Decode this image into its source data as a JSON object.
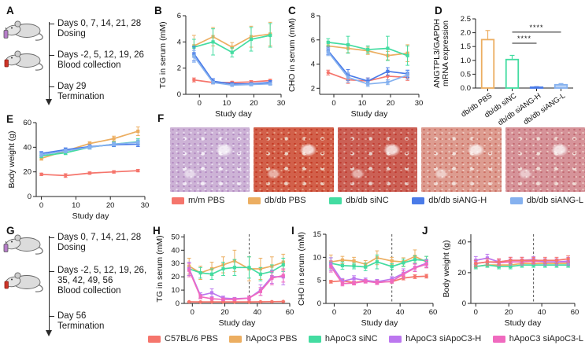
{
  "panels": {
    "a": "A",
    "b": "B",
    "c": "C",
    "d": "D",
    "e": "E",
    "f": "F",
    "g": "G",
    "h": "H",
    "i": "I",
    "j": "J"
  },
  "timelines": {
    "a": {
      "items": [
        {
          "line1": "Days 0, 7, 14, 21, 28",
          "line2": "Dosing"
        },
        {
          "line1": "Days -2, 5, 12, 19, 26",
          "line2": "Blood collection"
        },
        {
          "line1": "Day 29",
          "line2": "Termination"
        }
      ]
    },
    "g": {
      "items": [
        {
          "line1": "Days 0, 7, 14, 21, 28",
          "line2": "Dosing"
        },
        {
          "line1": "Days -2, 5, 12, 19, 26,",
          "line2": "35, 42, 49, 56",
          "line3": "Blood collection"
        },
        {
          "line1": "Day 56",
          "line2": "Termination"
        }
      ]
    }
  },
  "legend1": [
    {
      "label": "m/m PBS",
      "color": "#F5756C"
    },
    {
      "label": "db/db PBS",
      "color": "#ECAE61"
    },
    {
      "label": "db/db siNC",
      "color": "#43DCA1"
    },
    {
      "label": "db/db siANG-H",
      "color": "#4A7BE8"
    },
    {
      "label": "db/db siANG-L",
      "color": "#85B1EF"
    }
  ],
  "legend2": [
    {
      "label": "C57BL/6 PBS",
      "color": "#F5756C"
    },
    {
      "label": "hApoC3 PBS",
      "color": "#ECAE61"
    },
    {
      "label": "hApoC3 siNC",
      "color": "#43DCA1"
    },
    {
      "label": "hApoC3 siApoC3-H",
      "color": "#BC77EF"
    },
    {
      "label": "hApoC3 siApoC3-L",
      "color": "#F06ABF"
    }
  ],
  "histology": [
    {
      "name": "m/m PBS",
      "base": "#cdb3d6",
      "spot1": "#b48cc2",
      "spot2": "#e9ddf0",
      "light": "#f4eef7"
    },
    {
      "name": "db/db PBS",
      "base": "#d2604a",
      "spot1": "#c33a24",
      "spot2": "#e59c82",
      "light": "#ecd3c4"
    },
    {
      "name": "db/db siNC",
      "base": "#cb6055",
      "spot1": "#c03c31",
      "spot2": "#e09a90",
      "light": "#e8cfc9"
    },
    {
      "name": "db/db siANG-H",
      "base": "#dd9c90",
      "spot1": "#cd6f62",
      "spot2": "#efc9c0",
      "light": "#f3e0da"
    },
    {
      "name": "db/db siANG-L",
      "base": "#d69399",
      "spot1": "#c26b72",
      "spot2": "#ecc8c3",
      "light": "#f1ded8"
    }
  ],
  "chart_data": [
    {
      "panel": "B",
      "type": "line",
      "xlabel": "Study day",
      "ylabel": "TG in serum (mM)",
      "xlim": [
        -5,
        30
      ],
      "xticks": [
        0,
        10,
        20,
        30
      ],
      "ylim": [
        0,
        6
      ],
      "yticks": [
        0,
        2,
        4,
        6
      ],
      "x": [
        -2,
        5,
        12,
        19,
        26
      ],
      "margins": {
        "l": 36,
        "t": 10,
        "r": 8,
        "b": 32
      },
      "series": [
        {
          "name": "m/m PBS",
          "color": "#F5756C",
          "marker": "ci",
          "values": [
            1.1,
            0.9,
            0.9,
            0.95,
            1.05
          ],
          "err": [
            0.15,
            0.1,
            0.1,
            0.1,
            0.1
          ]
        },
        {
          "name": "db/db PBS",
          "color": "#ECAE61",
          "marker": "sq",
          "values": [
            3.7,
            4.4,
            3.6,
            4.4,
            4.6
          ],
          "err": [
            0.8,
            0.7,
            0.35,
            0.8,
            0.9
          ]
        },
        {
          "name": "db/db siNC",
          "color": "#43DCA1",
          "marker": "sq",
          "values": [
            3.6,
            4.0,
            3.2,
            4.2,
            4.5
          ],
          "err": [
            0.6,
            1.0,
            0.35,
            0.9,
            0.9
          ]
        },
        {
          "name": "db/db siANG-H",
          "color": "#4A7BE8",
          "marker": "sq",
          "values": [
            3.1,
            1.0,
            0.8,
            0.8,
            0.9
          ],
          "err": [
            0.55,
            0.2,
            0.1,
            0.1,
            0.15
          ]
        },
        {
          "name": "db/db siANG-L",
          "color": "#85B1EF",
          "marker": "sq",
          "values": [
            2.9,
            0.9,
            0.7,
            0.75,
            0.8
          ],
          "err": [
            0.45,
            0.1,
            0.1,
            0.1,
            0.1
          ]
        }
      ]
    },
    {
      "panel": "C",
      "type": "line",
      "xlabel": "Study day",
      "ylabel": "CHO in serum (mM)",
      "xlim": [
        -5,
        30
      ],
      "xticks": [
        0,
        10,
        20,
        30
      ],
      "ylim": [
        1.5,
        8
      ],
      "yticks": [
        2,
        4,
        6,
        8
      ],
      "x": [
        -2,
        5,
        12,
        19,
        26
      ],
      "margins": {
        "l": 42,
        "t": 10,
        "r": 10,
        "b": 32
      },
      "series": [
        {
          "name": "m/m PBS",
          "color": "#F5756C",
          "marker": "ci",
          "values": [
            3.3,
            2.7,
            2.6,
            3.0,
            2.9
          ],
          "err": [
            0.2,
            0.3,
            0.25,
            0.3,
            0.25
          ]
        },
        {
          "name": "db/db PBS",
          "color": "#ECAE61",
          "marker": "sq",
          "values": [
            5.5,
            5.3,
            5.1,
            4.7,
            4.9
          ],
          "err": [
            0.35,
            0.35,
            0.3,
            0.35,
            0.7
          ]
        },
        {
          "name": "db/db siNC",
          "color": "#43DCA1",
          "marker": "sq",
          "values": [
            5.8,
            5.6,
            5.2,
            5.3,
            4.7
          ],
          "err": [
            0.3,
            0.7,
            0.3,
            1.0,
            0.8
          ]
        },
        {
          "name": "db/db siANG-H",
          "color": "#4A7BE8",
          "marker": "sq",
          "values": [
            5.1,
            3.1,
            2.6,
            3.4,
            3.2
          ],
          "err": [
            0.3,
            0.45,
            0.25,
            0.3,
            0.3
          ]
        },
        {
          "name": "db/db siANG-L",
          "color": "#85B1EF",
          "marker": "sq",
          "values": [
            5.0,
            2.9,
            2.35,
            2.5,
            3.1
          ],
          "err": [
            0.3,
            0.4,
            0.2,
            0.2,
            0.35
          ]
        }
      ]
    },
    {
      "panel": "D",
      "type": "bar",
      "ylabel_lines": [
        "ANGTPL3/GAPDH",
        "mRNA expression"
      ],
      "ylim": [
        0,
        2.5
      ],
      "yticks": [
        0,
        0.5,
        1,
        1.5,
        2,
        2.5
      ],
      "ytick_decimals": 1,
      "margins": {
        "l": 56,
        "t": 16,
        "r": 14,
        "b": 54
      },
      "categories": [
        "db/db PBS",
        "db/db siNC",
        "db/db siANG-H",
        "db/db siANG-L"
      ],
      "values": [
        1.75,
        1.03,
        0.03,
        0.12
      ],
      "errors": [
        0.33,
        0.15,
        0.02,
        0.04
      ],
      "bar_stroke": [
        "#ECAE61",
        "#43DCA1",
        "#4A7BE8",
        "#85B1EF"
      ],
      "bar_fill": [
        "none",
        "none",
        "#4A7BE8",
        "#B9D2F5"
      ],
      "sig": [
        {
          "from": 1,
          "to": 2,
          "y": 1.62,
          "label": "****"
        },
        {
          "from": 1,
          "to": 3,
          "y": 2.02,
          "label": "****"
        }
      ]
    },
    {
      "panel": "E",
      "type": "line",
      "xlabel": "Study day",
      "ylabel": "Body weight (g)",
      "xlim": [
        -1.5,
        30
      ],
      "xticks": [
        0,
        10,
        20,
        30
      ],
      "ylim": [
        0,
        60
      ],
      "yticks": [
        0,
        20,
        40,
        60
      ],
      "x": [
        0,
        7,
        14,
        21,
        28
      ],
      "margins": {
        "l": 38,
        "t": 8,
        "r": 8,
        "b": 32
      },
      "series": [
        {
          "name": "m/m PBS",
          "color": "#F5756C",
          "marker": "ci",
          "values": [
            18,
            17,
            19,
            20,
            21
          ],
          "err": [
            1,
            1.5,
            1,
            1,
            1
          ]
        },
        {
          "name": "db/db PBS",
          "color": "#ECAE61",
          "marker": "sq",
          "values": [
            31,
            37,
            43,
            47,
            53
          ],
          "err": [
            1.5,
            1.5,
            1.5,
            2,
            3.5
          ]
        },
        {
          "name": "db/db siNC",
          "color": "#43DCA1",
          "marker": "sq",
          "values": [
            33,
            35.5,
            40,
            42.5,
            44.5
          ],
          "err": [
            1.5,
            1.5,
            1.5,
            2,
            2.5
          ]
        },
        {
          "name": "db/db siANG-H",
          "color": "#4A7BE8",
          "marker": "sq",
          "values": [
            35,
            38,
            40.5,
            42,
            42.5
          ],
          "err": [
            1.5,
            1.5,
            1.5,
            1.5,
            2
          ]
        },
        {
          "name": "db/db siANG-L",
          "color": "#85B1EF",
          "marker": "sq",
          "values": [
            34,
            37,
            40,
            42.5,
            44
          ],
          "err": [
            1.5,
            1.5,
            1.5,
            1.5,
            2
          ]
        }
      ]
    },
    {
      "panel": "H",
      "type": "line",
      "xlabel": "Study day",
      "ylabel": "TG in serum (mM)",
      "vline": 35,
      "xlim": [
        -5,
        60
      ],
      "xticks": [
        0,
        20,
        40,
        60
      ],
      "ylim": [
        0,
        52
      ],
      "yticks": [
        0,
        10,
        20,
        30,
        40,
        50
      ],
      "x": [
        -2,
        5,
        12,
        19,
        26,
        35,
        42,
        49,
        56
      ],
      "margins": {
        "l": 38,
        "t": 6,
        "r": 6,
        "b": 32
      },
      "series": [
        {
          "name": "C57BL/6 PBS",
          "color": "#F5756C",
          "marker": "ci",
          "values": [
            1.2,
            1.1,
            1.1,
            1.1,
            1.1,
            1.1,
            1.2,
            1.3,
            1.4
          ],
          "err": [
            0.3,
            0.3,
            0.3,
            0.3,
            0.3,
            0.3,
            0.3,
            0.3,
            0.3
          ]
        },
        {
          "name": "hApoC3 PBS",
          "color": "#ECAE61",
          "marker": "sq",
          "values": [
            28,
            23,
            26,
            29,
            32,
            26,
            26,
            28,
            31
          ],
          "err": [
            6,
            5,
            5,
            6,
            8,
            9,
            8,
            7,
            6
          ]
        },
        {
          "name": "hApoC3 siNC",
          "color": "#43DCA1",
          "marker": "sq",
          "values": [
            26,
            23,
            22,
            26,
            27,
            27,
            22,
            24,
            29
          ],
          "err": [
            5,
            4,
            4,
            5,
            6,
            8,
            5,
            5,
            5
          ]
        },
        {
          "name": "hApoC3 siApoC3-H",
          "color": "#BC77EF",
          "marker": "sq",
          "values": [
            26,
            6,
            8,
            4,
            3.5,
            4,
            10,
            20,
            20
          ],
          "err": [
            5,
            2,
            3,
            1.5,
            1,
            1.5,
            4,
            5,
            6
          ]
        },
        {
          "name": "hApoC3 siApoC3-L",
          "color": "#F06ABF",
          "marker": "sq",
          "values": [
            25,
            5,
            3.5,
            3,
            3,
            4,
            9,
            19,
            21
          ],
          "err": [
            5,
            1.5,
            1,
            1,
            1,
            1.5,
            3,
            5,
            5
          ]
        }
      ]
    },
    {
      "panel": "I",
      "type": "line",
      "xlabel": "Study day",
      "ylabel": "CHO in serum (mM)",
      "vline": 35,
      "xlim": [
        -5,
        60
      ],
      "xticks": [
        0,
        20,
        40,
        60
      ],
      "ylim": [
        0,
        15
      ],
      "yticks": [
        0,
        5,
        10,
        15
      ],
      "x": [
        -2,
        5,
        12,
        19,
        26,
        35,
        42,
        49,
        56
      ],
      "margins": {
        "l": 38,
        "t": 6,
        "r": 8,
        "b": 32
      },
      "series": [
        {
          "name": "C57BL/6 PBS",
          "color": "#F5756C",
          "marker": "ci",
          "values": [
            4.7,
            4.9,
            4.5,
            4.9,
            4.7,
            4.7,
            5.5,
            5.8,
            5.9
          ],
          "err": [
            0.3,
            0.3,
            0.3,
            0.3,
            0.3,
            0.3,
            0.4,
            0.4,
            0.4
          ]
        },
        {
          "name": "hApoC3 PBS",
          "color": "#ECAE61",
          "marker": "sq",
          "values": [
            9,
            9.4,
            9.2,
            8.5,
            9.9,
            9.2,
            9,
            10.2,
            9
          ],
          "err": [
            1.5,
            0.8,
            0.8,
            0.8,
            1.5,
            0.8,
            0.9,
            1.4,
            1.2
          ]
        },
        {
          "name": "hApoC3 siNC",
          "color": "#43DCA1",
          "marker": "sq",
          "values": [
            8.7,
            8.2,
            8.1,
            7.9,
            9,
            8,
            8.8,
            9.5,
            9.3
          ],
          "err": [
            1.2,
            0.8,
            0.6,
            0.8,
            1.5,
            0.6,
            0.8,
            0.8,
            0.9
          ]
        },
        {
          "name": "hApoC3 siApoC3-H",
          "color": "#BC77EF",
          "marker": "sq",
          "values": [
            8.5,
            4.8,
            5.4,
            5,
            4.7,
            5.3,
            6.5,
            7.8,
            8.7
          ],
          "err": [
            1.4,
            0.6,
            0.6,
            0.5,
            0.5,
            0.5,
            1,
            0.8,
            0.8
          ]
        },
        {
          "name": "hApoC3 siApoC3-L",
          "color": "#F06ABF",
          "marker": "sq",
          "values": [
            8,
            4.3,
            4.4,
            4.8,
            4.5,
            4.8,
            6.3,
            7.7,
            8.5
          ],
          "err": [
            1.2,
            0.5,
            0.4,
            0.4,
            0.4,
            0.4,
            0.8,
            0.8,
            0.8
          ]
        }
      ]
    },
    {
      "panel": "J",
      "type": "line",
      "xlabel": "Study day",
      "ylabel": "Body weight (g)",
      "vline": 35,
      "xlim": [
        -3,
        60
      ],
      "xticks": [
        0,
        20,
        40,
        60
      ],
      "ylim": [
        0,
        45
      ],
      "yticks": [
        0,
        20,
        40
      ],
      "x": [
        0,
        7,
        14,
        21,
        28,
        35,
        42,
        49,
        56
      ],
      "margins": {
        "l": 38,
        "t": 6,
        "r": 12,
        "b": 32
      },
      "series": [
        {
          "name": "hApoC3 PBS",
          "color": "#ECAE61",
          "marker": "sq",
          "values": [
            24,
            25,
            25,
            25,
            26,
            26,
            26,
            26,
            26
          ],
          "err": [
            1.5,
            1.5,
            1.5,
            1.5,
            1.5,
            1.5,
            1.5,
            1.5,
            1.5
          ]
        },
        {
          "name": "hApoC3 siNC",
          "color": "#43DCA1",
          "marker": "sq",
          "values": [
            24,
            25,
            24,
            24,
            25,
            25,
            25,
            25,
            25
          ],
          "err": [
            1.5,
            1.5,
            1.5,
            1.5,
            1.5,
            1.5,
            1.5,
            1.5,
            1.5
          ]
        },
        {
          "name": "hApoC3 siApoC3-L",
          "color": "#F06ABF",
          "marker": "sq",
          "values": [
            26,
            27,
            26.5,
            27,
            27,
            27.5,
            27,
            27,
            27
          ],
          "err": [
            2,
            2,
            2,
            2,
            2,
            2,
            2,
            2,
            2
          ]
        },
        {
          "name": "hApoC3 siApoC3-H",
          "color": "#BC77EF",
          "marker": "sq",
          "values": [
            28,
            29.5,
            27,
            28,
            28,
            28.5,
            27,
            27,
            27.5
          ],
          "err": [
            2.5,
            2.5,
            2,
            2,
            2,
            2,
            2,
            2,
            2.5
          ]
        },
        {
          "name": "C57BL/6 PBS",
          "color": "#F5756C",
          "marker": "ci",
          "values": [
            26,
            27,
            27,
            28,
            28,
            28,
            28,
            28,
            29
          ],
          "err": [
            2,
            2,
            2,
            2,
            2,
            2,
            2,
            2,
            2
          ]
        }
      ]
    }
  ]
}
